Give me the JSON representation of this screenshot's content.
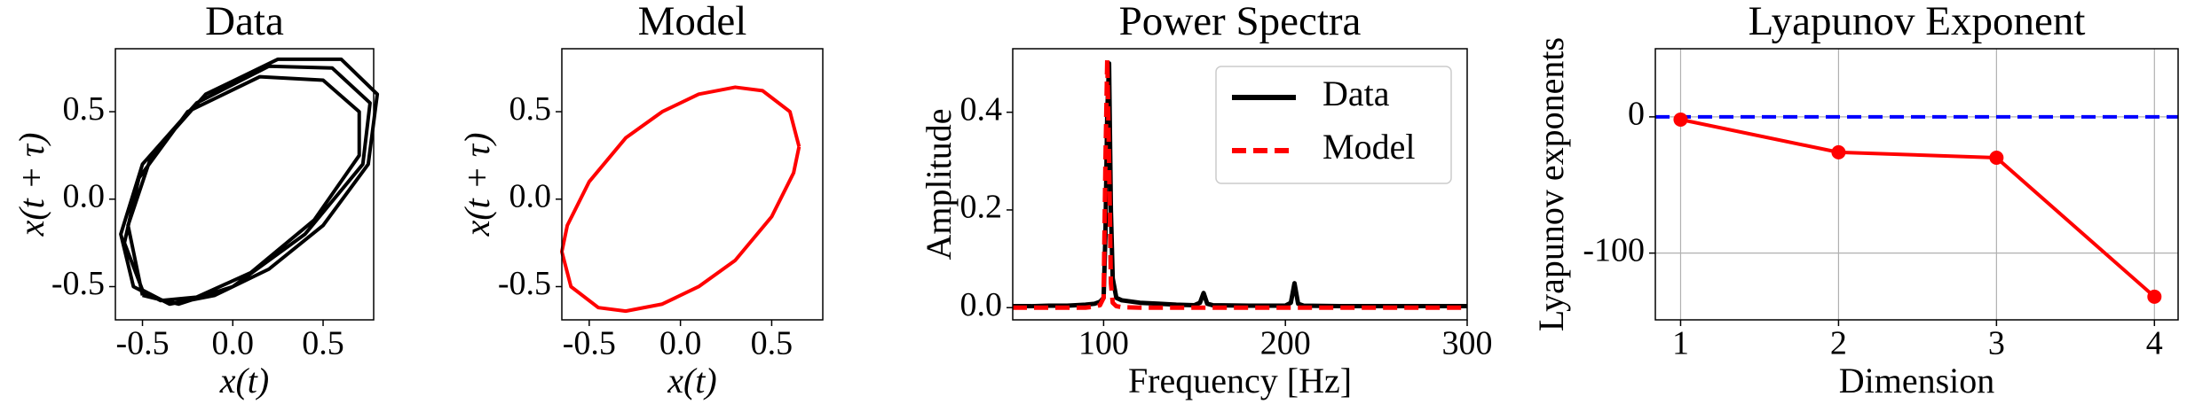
{
  "chart_data": [
    {
      "type": "line",
      "title": "Data",
      "xlabel": "x(t)",
      "ylabel": "x(t + τ)",
      "xlim": [
        -0.65,
        0.78
      ],
      "ylim": [
        -0.69,
        0.86
      ],
      "xticks": [
        -0.5,
        {
          "value": 0,
          "label": "0.0"
        },
        0.5
      ],
      "yticks": [
        -0.5,
        {
          "value": 0,
          "label": "0.0"
        },
        0.5
      ],
      "grid": false,
      "series": [
        {
          "color": "#000000",
          "x": [
            -0.5,
            -0.3,
            0.0,
            0.4,
            0.72,
            0.76,
            0.55,
            0.2,
            -0.2,
            -0.5,
            -0.62,
            -0.55,
            -0.4,
            -0.2,
            0.1,
            0.45,
            0.7,
            0.7,
            0.5,
            0.15,
            -0.25,
            -0.52,
            -0.6,
            -0.5,
            -0.35,
            -0.1,
            0.2,
            0.5,
            0.75,
            0.8,
            0.6,
            0.25,
            -0.15,
            -0.45,
            -0.58,
            -0.5
          ],
          "values": [
            -0.55,
            -0.6,
            -0.5,
            -0.2,
            0.2,
            0.55,
            0.75,
            0.76,
            0.55,
            0.2,
            -0.2,
            -0.5,
            -0.58,
            -0.56,
            -0.42,
            -0.12,
            0.25,
            0.5,
            0.68,
            0.7,
            0.5,
            0.12,
            -0.25,
            -0.52,
            -0.6,
            -0.55,
            -0.4,
            -0.15,
            0.2,
            0.6,
            0.8,
            0.8,
            0.6,
            0.25,
            -0.15,
            -0.55
          ]
        }
      ]
    },
    {
      "type": "line",
      "title": "Model",
      "xlabel": "x(t)",
      "ylabel": "x(t + τ)",
      "xlim": [
        -0.65,
        0.78
      ],
      "ylim": [
        -0.69,
        0.86
      ],
      "xticks": [
        -0.5,
        {
          "value": 0,
          "label": "0.0"
        },
        0.5
      ],
      "yticks": [
        -0.5,
        {
          "value": 0,
          "label": "0.0"
        },
        0.5
      ],
      "grid": false,
      "series": [
        {
          "color": "#ff0000",
          "x": [
            0.65,
            0.6,
            0.45,
            0.3,
            0.1,
            -0.1,
            -0.3,
            -0.5,
            -0.62,
            -0.65,
            -0.6,
            -0.45,
            -0.3,
            -0.1,
            0.1,
            0.3,
            0.5,
            0.62,
            0.65
          ],
          "values": [
            0.3,
            0.5,
            0.62,
            0.64,
            0.6,
            0.5,
            0.35,
            0.1,
            -0.15,
            -0.3,
            -0.5,
            -0.62,
            -0.64,
            -0.6,
            -0.5,
            -0.35,
            -0.1,
            0.15,
            0.3
          ]
        }
      ]
    },
    {
      "type": "line",
      "title": "Power Spectra",
      "xlabel": "Frequency [Hz]",
      "ylabel": "Amplitude",
      "xlim": [
        50,
        300
      ],
      "ylim": [
        -0.025,
        0.53
      ],
      "xticks": [
        100,
        200,
        300
      ],
      "yticks": [
        {
          "value": 0,
          "label": "0.0"
        },
        0.2,
        0.4
      ],
      "grid": false,
      "legend": "upper right",
      "series": [
        {
          "name": "Data",
          "color": "#000000",
          "linestyle": "solid",
          "x": [
            50,
            60,
            70,
            80,
            90,
            95,
            98,
            100,
            101,
            102,
            103,
            104,
            105,
            107,
            110,
            120,
            130,
            140,
            150,
            153,
            155,
            157,
            160,
            180,
            200,
            203,
            205,
            207,
            210,
            230,
            260,
            300
          ],
          "values": [
            0.003,
            0.003,
            0.004,
            0.004,
            0.006,
            0.008,
            0.012,
            0.02,
            0.15,
            0.4,
            0.5,
            0.2,
            0.06,
            0.02,
            0.015,
            0.01,
            0.008,
            0.006,
            0.005,
            0.01,
            0.03,
            0.008,
            0.005,
            0.004,
            0.004,
            0.01,
            0.05,
            0.008,
            0.004,
            0.003,
            0.003,
            0.003
          ]
        },
        {
          "name": "Model",
          "color": "#ff0000",
          "linestyle": "dashed",
          "x": [
            50,
            60,
            70,
            80,
            90,
            95,
            98,
            100,
            101,
            102,
            103,
            104,
            105,
            107,
            110,
            120,
            130,
            140,
            150,
            153,
            155,
            157,
            160,
            180,
            200,
            203,
            205,
            207,
            210,
            230,
            260,
            300
          ],
          "values": [
            0,
            0,
            0,
            0,
            0,
            0.002,
            0.005,
            0.02,
            0.3,
            0.51,
            0.3,
            0.05,
            0.01,
            0.003,
            0.001,
            0,
            0,
            0,
            0,
            0,
            0,
            0,
            0,
            0,
            0,
            0,
            0,
            0,
            0,
            0,
            0,
            0
          ]
        }
      ]
    },
    {
      "type": "line",
      "title": "Lyapunov Exponent",
      "xlabel": "Dimension",
      "ylabel": "Lyapunov exponents",
      "xlim": [
        0.84,
        4.15
      ],
      "ylim": [
        -149,
        50
      ],
      "xticks": [
        1,
        2,
        3,
        4
      ],
      "yticks": [
        -100,
        0
      ],
      "grid": true,
      "hline": {
        "value": 0,
        "color": "#0000ff"
      },
      "series": [
        {
          "color": "#ff0000",
          "markers": true,
          "x": [
            1,
            2,
            3,
            4
          ],
          "values": [
            -2,
            -26,
            -30,
            -132
          ]
        }
      ]
    }
  ]
}
